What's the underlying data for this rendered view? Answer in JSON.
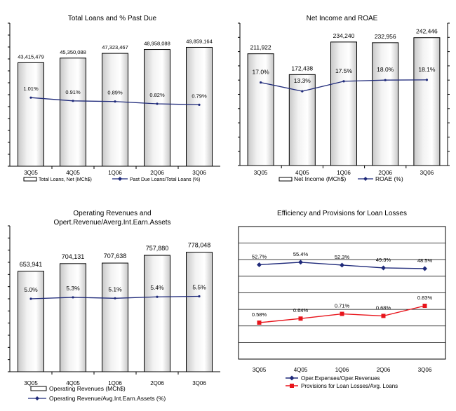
{
  "colors": {
    "bar_fill_light": "#f2f2f2",
    "bar_fill_dark": "#c8c8c8",
    "line_navy": "#1f2a7a",
    "line_red": "#e8141b",
    "axis": "#000000",
    "grid": "#000000"
  },
  "chart_data": [
    {
      "type": "bar",
      "title": "Total Loans and % Past Due",
      "categories": [
        "3Q05",
        "4Q05",
        "1Q06",
        "2Q06",
        "3Q06"
      ],
      "series": [
        {
          "name": "Total Loans, Net (MCh$)",
          "type": "bar",
          "values": [
            43415479,
            45350088,
            47323467,
            48958088,
            49859164
          ],
          "labels": [
            "43,415,479",
            "45,350,088",
            "47,323,467",
            "48,958,088",
            "49,859,164"
          ]
        },
        {
          "name": "Past Due Loans/Total Loans (%)",
          "type": "line",
          "values": [
            1.01,
            0.91,
            0.89,
            0.82,
            0.79
          ],
          "labels": [
            "1.01%",
            "0.91%",
            "0.89%",
            "0.82%",
            "0.79%"
          ]
        }
      ],
      "bar_scale": [
        0,
        60000000
      ],
      "line_scale": [
        -1.1,
        3.3
      ],
      "left_ticks": 12,
      "right_ticks": 0
    },
    {
      "type": "bar",
      "title": "Net Income and ROAE",
      "categories": [
        "3Q05",
        "4Q05",
        "1Q06",
        "2Q06",
        "3Q06"
      ],
      "series": [
        {
          "name": "Net Income (MCh$)",
          "type": "bar",
          "values": [
            211922,
            172438,
            234240,
            232956,
            242446
          ],
          "labels": [
            "211,922",
            "172,438",
            "234,240",
            "232,956",
            "242,446"
          ]
        },
        {
          "name": "ROAE (%)",
          "type": "line",
          "values": [
            17.0,
            13.3,
            17.5,
            18.0,
            18.1
          ],
          "labels": [
            "17.0%",
            "13.3%",
            "17.5%",
            "18.0%",
            "18.1%"
          ]
        }
      ],
      "bar_scale": [
        0,
        270000
      ],
      "line_scale": [
        -18,
        42
      ],
      "left_ticks": 10,
      "right_ticks": 10
    },
    {
      "type": "bar",
      "title": "Operating Revenues and Opert.Revenue/Averg.Int.Earn.Assets",
      "categories": [
        "3Q05",
        "4Q05",
        "1Q06",
        "2Q06",
        "3Q06"
      ],
      "series": [
        {
          "name": "Operating Revenues (MCh$)",
          "type": "bar",
          "values": [
            653941,
            704131,
            707638,
            757880,
            778048
          ],
          "labels": [
            "653,941",
            "704,131",
            "707,638",
            "757,880",
            "778,048"
          ]
        },
        {
          "name": "Operating Revenue/Avg.Int.Earn.Assets (%)",
          "type": "line",
          "values": [
            5.0,
            5.3,
            5.1,
            5.4,
            5.5
          ],
          "labels": [
            "5.0%",
            "5.3%",
            "5.1%",
            "5.4%",
            "5.5%"
          ]
        }
      ],
      "bar_scale": [
        0,
        950000
      ],
      "line_scale": [
        -10,
        20
      ],
      "left_ticks": 12,
      "right_ticks": 0
    },
    {
      "type": "line",
      "title": "Efficiency and Provisions for Loan Losses",
      "categories": [
        "3Q05",
        "4Q05",
        "1Q06",
        "2Q06",
        "3Q06"
      ],
      "series": [
        {
          "name": "Oper.Expenses/Oper.Revenues",
          "type": "line",
          "color": "#1f2a7a",
          "marker": "diamond",
          "values": [
            52.7,
            55.4,
            52.3,
            49.3,
            48.5
          ],
          "labels": [
            "52.7%",
            "55.4%",
            "52.3%",
            "49.3%",
            "48.5%"
          ]
        },
        {
          "name": "Provisions for Loan Losses/Avg. Loans",
          "type": "line",
          "color": "#e8141b",
          "marker": "square",
          "values": [
            0.58,
            0.64,
            0.71,
            0.68,
            0.83
          ],
          "labels": [
            "0.58%",
            "0.64%",
            "0.71%",
            "0.68%",
            "0.83%"
          ]
        }
      ],
      "grid": true
    }
  ]
}
